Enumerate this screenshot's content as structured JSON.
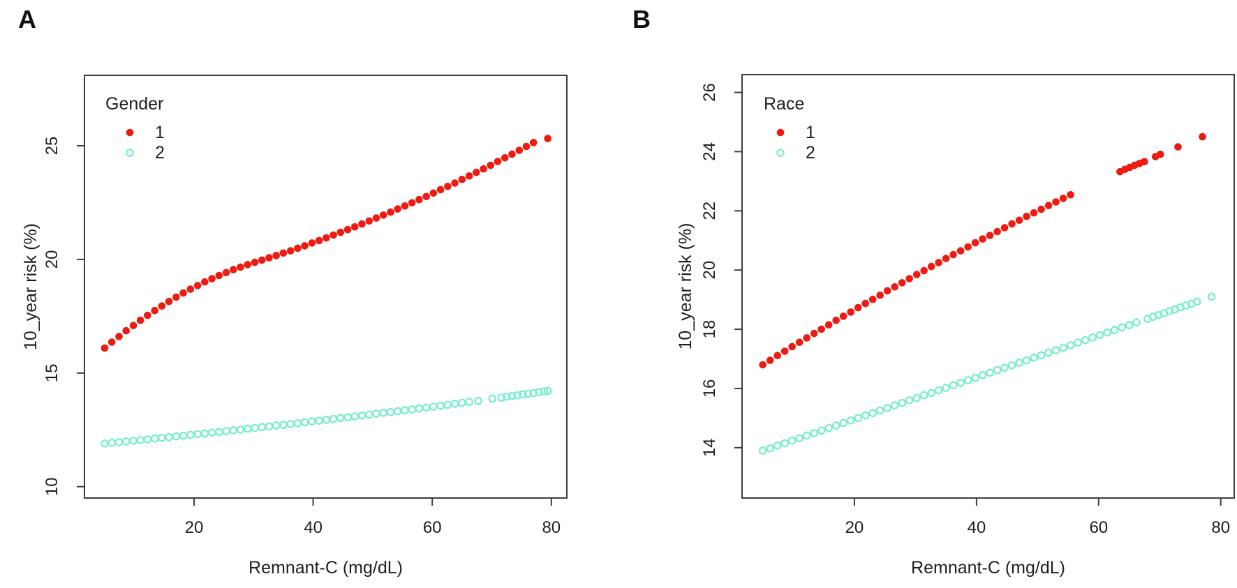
{
  "figure": {
    "background": "#ffffff",
    "text_color": "#1f1f1f",
    "axis_color": "#3d3d3d"
  },
  "chart_data": [
    {
      "type": "scatter",
      "panel_label": "A",
      "xlabel": "Remnant-C (mg/dL)",
      "ylabel": "10_year risk (%)",
      "x_ticks": [
        20,
        40,
        60,
        80
      ],
      "y_ticks": [
        10,
        15,
        20,
        25
      ],
      "xlim": [
        1.6,
        82.6
      ],
      "ylim": [
        9.5,
        28.1
      ],
      "grid": false,
      "legend": {
        "title": "Gender",
        "position": "top-left",
        "items": [
          {
            "label": "1",
            "marker": "filled-circle",
            "color": "#ee1b12"
          },
          {
            "label": "2",
            "marker": "open-circle",
            "color": "#76eecb"
          }
        ]
      },
      "series": [
        {
          "name": "1",
          "marker": "filled-circle",
          "color": "#ee1b12",
          "points": [
            [
              5,
              16.1
            ],
            [
              6.2,
              16.36
            ],
            [
              7.4,
              16.61
            ],
            [
              8.6,
              16.86
            ],
            [
              9.8,
              17.09
            ],
            [
              11,
              17.32
            ],
            [
              12.2,
              17.54
            ],
            [
              13.4,
              17.75
            ],
            [
              14.6,
              17.95
            ],
            [
              15.8,
              18.15
            ],
            [
              17,
              18.34
            ],
            [
              18.2,
              18.52
            ],
            [
              19.4,
              18.69
            ],
            [
              20.6,
              18.85
            ],
            [
              21.8,
              19.01
            ],
            [
              23,
              19.15
            ],
            [
              24.2,
              19.29
            ],
            [
              25.4,
              19.42
            ],
            [
              26.6,
              19.55
            ],
            [
              27.8,
              19.66
            ],
            [
              29,
              19.77
            ],
            [
              30.2,
              19.87
            ],
            [
              31.4,
              19.97
            ],
            [
              32.6,
              20.07
            ],
            [
              33.8,
              20.17
            ],
            [
              35,
              20.28
            ],
            [
              36.2,
              20.38
            ],
            [
              37.4,
              20.49
            ],
            [
              38.6,
              20.6
            ],
            [
              39.8,
              20.72
            ],
            [
              41,
              20.83
            ],
            [
              42.2,
              20.95
            ],
            [
              43.4,
              21.07
            ],
            [
              44.6,
              21.19
            ],
            [
              45.8,
              21.31
            ],
            [
              47,
              21.43
            ],
            [
              48.2,
              21.56
            ],
            [
              49.4,
              21.69
            ],
            [
              50.6,
              21.82
            ],
            [
              51.8,
              21.95
            ],
            [
              53,
              22.08
            ],
            [
              54.2,
              22.22
            ],
            [
              55.4,
              22.35
            ],
            [
              56.6,
              22.49
            ],
            [
              57.8,
              22.63
            ],
            [
              59,
              22.77
            ],
            [
              60.2,
              22.92
            ],
            [
              61.4,
              23.07
            ],
            [
              62.6,
              23.21
            ],
            [
              63.8,
              23.36
            ],
            [
              65,
              23.52
            ],
            [
              66.2,
              23.67
            ],
            [
              67.4,
              23.83
            ],
            [
              68.6,
              23.98
            ],
            [
              69.8,
              24.14
            ],
            [
              71,
              24.31
            ],
            [
              72.2,
              24.47
            ],
            [
              73.4,
              24.63
            ],
            [
              74.6,
              24.8
            ],
            [
              75.8,
              24.97
            ],
            [
              77,
              25.14
            ],
            [
              79.4,
              25.32
            ]
          ]
        },
        {
          "name": "2",
          "marker": "open-circle",
          "color": "#76eecb",
          "points": [
            [
              5,
              11.9
            ],
            [
              6.2,
              11.93
            ],
            [
              7.4,
              11.96
            ],
            [
              8.6,
              11.99
            ],
            [
              9.8,
              12.02
            ],
            [
              11,
              12.05
            ],
            [
              12.2,
              12.08
            ],
            [
              13.4,
              12.12
            ],
            [
              14.6,
              12.15
            ],
            [
              15.8,
              12.18
            ],
            [
              17,
              12.21
            ],
            [
              18.2,
              12.24
            ],
            [
              19.4,
              12.28
            ],
            [
              20.6,
              12.31
            ],
            [
              21.8,
              12.34
            ],
            [
              23,
              12.38
            ],
            [
              24.2,
              12.41
            ],
            [
              25.4,
              12.44
            ],
            [
              26.6,
              12.48
            ],
            [
              27.8,
              12.51
            ],
            [
              29,
              12.55
            ],
            [
              30.2,
              12.58
            ],
            [
              31.4,
              12.62
            ],
            [
              32.6,
              12.65
            ],
            [
              33.8,
              12.69
            ],
            [
              35,
              12.72
            ],
            [
              36.2,
              12.76
            ],
            [
              37.4,
              12.79
            ],
            [
              38.6,
              12.83
            ],
            [
              39.8,
              12.87
            ],
            [
              41,
              12.9
            ],
            [
              42.2,
              12.94
            ],
            [
              43.4,
              12.98
            ],
            [
              44.6,
              13.02
            ],
            [
              45.8,
              13.05
            ],
            [
              47,
              13.09
            ],
            [
              48.2,
              13.13
            ],
            [
              49.4,
              13.17
            ],
            [
              50.6,
              13.21
            ],
            [
              51.8,
              13.25
            ],
            [
              53,
              13.28
            ],
            [
              54.2,
              13.32
            ],
            [
              55.4,
              13.36
            ],
            [
              56.6,
              13.4
            ],
            [
              57.8,
              13.44
            ],
            [
              59,
              13.48
            ],
            [
              60.2,
              13.52
            ],
            [
              61.4,
              13.56
            ],
            [
              62.6,
              13.6
            ],
            [
              63.8,
              13.65
            ],
            [
              65,
              13.69
            ],
            [
              66.2,
              13.73
            ],
            [
              67.7,
              13.78
            ],
            [
              70.1,
              13.87
            ],
            [
              71.6,
              13.92
            ],
            [
              72.5,
              13.96
            ],
            [
              73.4,
              13.99
            ],
            [
              74.3,
              14.02
            ],
            [
              75.2,
              14.06
            ],
            [
              76.1,
              14.09
            ],
            [
              77,
              14.12
            ],
            [
              77.9,
              14.16
            ],
            [
              78.8,
              14.19
            ],
            [
              79.4,
              14.21
            ]
          ]
        }
      ]
    },
    {
      "type": "scatter",
      "panel_label": "B",
      "xlabel": "Remnant-C (mg/dL)",
      "ylabel": "10_year risk (%)",
      "x_ticks": [
        20,
        40,
        60,
        80
      ],
      "y_ticks": [
        14,
        16,
        18,
        20,
        22,
        24,
        26
      ],
      "xlim": [
        1.6,
        82.2
      ],
      "ylim": [
        12.3,
        26.6
      ],
      "grid": false,
      "legend": {
        "title": "Race",
        "position": "top-left",
        "items": [
          {
            "label": "1",
            "marker": "filled-circle",
            "color": "#ee1b12"
          },
          {
            "label": "2",
            "marker": "open-circle",
            "color": "#76eecb"
          }
        ]
      },
      "series": [
        {
          "name": "1",
          "marker": "filled-circle",
          "color": "#ee1b12",
          "points": [
            [
              5,
              16.8
            ],
            [
              6.2,
              16.95
            ],
            [
              7.4,
              17.11
            ],
            [
              8.6,
              17.26
            ],
            [
              9.8,
              17.41
            ],
            [
              11,
              17.56
            ],
            [
              12.2,
              17.71
            ],
            [
              13.4,
              17.86
            ],
            [
              14.6,
              18.0
            ],
            [
              15.8,
              18.15
            ],
            [
              17,
              18.3
            ],
            [
              18.2,
              18.44
            ],
            [
              19.4,
              18.58
            ],
            [
              20.6,
              18.73
            ],
            [
              21.8,
              18.87
            ],
            [
              23,
              19.01
            ],
            [
              24.2,
              19.15
            ],
            [
              25.4,
              19.3
            ],
            [
              26.6,
              19.43
            ],
            [
              27.8,
              19.57
            ],
            [
              29,
              19.71
            ],
            [
              30.2,
              19.85
            ],
            [
              31.4,
              19.98
            ],
            [
              32.6,
              20.12
            ],
            [
              33.8,
              20.25
            ],
            [
              35,
              20.39
            ],
            [
              36.2,
              20.52
            ],
            [
              37.4,
              20.65
            ],
            [
              38.6,
              20.78
            ],
            [
              39.8,
              20.92
            ],
            [
              41,
              21.05
            ],
            [
              42.2,
              21.17
            ],
            [
              43.4,
              21.3
            ],
            [
              44.6,
              21.43
            ],
            [
              45.8,
              21.56
            ],
            [
              47,
              21.68
            ],
            [
              48.2,
              21.81
            ],
            [
              49.4,
              21.93
            ],
            [
              50.6,
              22.05
            ],
            [
              51.8,
              22.18
            ],
            [
              53,
              22.3
            ],
            [
              54.2,
              22.42
            ],
            [
              55.4,
              22.54
            ],
            [
              63.5,
              23.32
            ],
            [
              64.3,
              23.4
            ],
            [
              65.1,
              23.47
            ],
            [
              65.9,
              23.54
            ],
            [
              66.7,
              23.6
            ],
            [
              67.5,
              23.66
            ],
            [
              69.3,
              23.83
            ],
            [
              70.1,
              23.91
            ],
            [
              73,
              24.16
            ],
            [
              77,
              24.5
            ]
          ]
        },
        {
          "name": "2",
          "marker": "open-circle",
          "color": "#76eecb",
          "points": [
            [
              5,
              13.9
            ],
            [
              6.2,
              13.98
            ],
            [
              7.4,
              14.07
            ],
            [
              8.6,
              14.15
            ],
            [
              9.8,
              14.24
            ],
            [
              11,
              14.32
            ],
            [
              12.2,
              14.41
            ],
            [
              13.4,
              14.49
            ],
            [
              14.6,
              14.58
            ],
            [
              15.8,
              14.66
            ],
            [
              17,
              14.75
            ],
            [
              18.2,
              14.83
            ],
            [
              19.4,
              14.92
            ],
            [
              20.6,
              15.0
            ],
            [
              21.8,
              15.09
            ],
            [
              23,
              15.17
            ],
            [
              24.2,
              15.26
            ],
            [
              25.4,
              15.34
            ],
            [
              26.6,
              15.43
            ],
            [
              27.8,
              15.51
            ],
            [
              29,
              15.6
            ],
            [
              30.2,
              15.68
            ],
            [
              31.4,
              15.77
            ],
            [
              32.6,
              15.85
            ],
            [
              33.8,
              15.94
            ],
            [
              35,
              16.02
            ],
            [
              36.2,
              16.11
            ],
            [
              37.4,
              16.19
            ],
            [
              38.6,
              16.28
            ],
            [
              39.8,
              16.36
            ],
            [
              41,
              16.45
            ],
            [
              42.2,
              16.53
            ],
            [
              43.4,
              16.62
            ],
            [
              44.6,
              16.7
            ],
            [
              45.8,
              16.78
            ],
            [
              47,
              16.87
            ],
            [
              48.2,
              16.95
            ],
            [
              49.4,
              17.04
            ],
            [
              50.6,
              17.12
            ],
            [
              51.8,
              17.21
            ],
            [
              53,
              17.29
            ],
            [
              54.2,
              17.38
            ],
            [
              55.4,
              17.46
            ],
            [
              56.6,
              17.55
            ],
            [
              57.8,
              17.63
            ],
            [
              59,
              17.72
            ],
            [
              60.2,
              17.8
            ],
            [
              61.4,
              17.89
            ],
            [
              62.6,
              17.97
            ],
            [
              63.8,
              18.06
            ],
            [
              65,
              18.14
            ],
            [
              66.2,
              18.23
            ],
            [
              68,
              18.35
            ],
            [
              68.9,
              18.42
            ],
            [
              69.8,
              18.48
            ],
            [
              70.7,
              18.54
            ],
            [
              71.6,
              18.61
            ],
            [
              72.5,
              18.67
            ],
            [
              73.4,
              18.74
            ],
            [
              74.3,
              18.8
            ],
            [
              75.2,
              18.86
            ],
            [
              76.1,
              18.93
            ],
            [
              78.5,
              19.1
            ]
          ]
        }
      ]
    }
  ]
}
